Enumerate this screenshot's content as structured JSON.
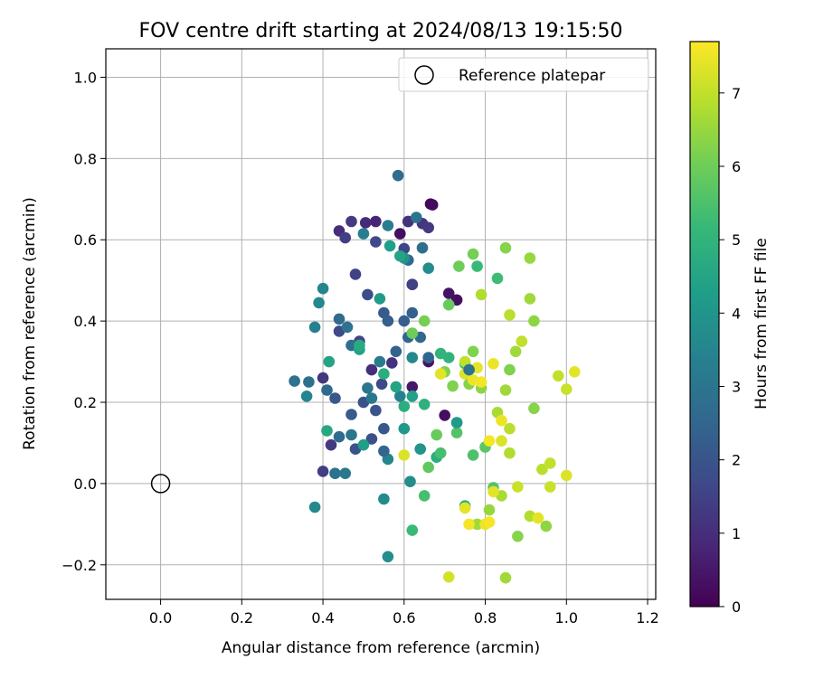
{
  "chart_data": {
    "type": "scatter",
    "title": "FOV centre drift starting at 2024/08/13 19:15:50",
    "xlabel": "Angular distance from reference (arcmin)",
    "ylabel": "Rotation from reference (arcmin)",
    "xlim": [
      -0.135,
      1.22
    ],
    "ylim": [
      -0.285,
      1.07
    ],
    "xticks": [
      0.0,
      0.2,
      0.4,
      0.6,
      0.8,
      1.0,
      1.2
    ],
    "xtick_labels": [
      "0.0",
      "0.2",
      "0.4",
      "0.6",
      "0.8",
      "1.0",
      "1.2"
    ],
    "yticks": [
      -0.2,
      0.0,
      0.2,
      0.4,
      0.6,
      0.8,
      1.0
    ],
    "ytick_labels": [
      "−0.2",
      "0.0",
      "0.2",
      "0.4",
      "0.6",
      "0.8",
      "1.0"
    ],
    "grid": true,
    "legend": {
      "position": "top-right",
      "entries": [
        "Reference platepar"
      ]
    },
    "reference_point": {
      "x": 0.0,
      "y": 0.0
    },
    "colorbar": {
      "label": "Hours from first FF file",
      "min": 0,
      "max": 7.7,
      "ticks": [
        0,
        1,
        2,
        3,
        4,
        5,
        6,
        7
      ],
      "tick_labels": [
        "0",
        "1",
        "2",
        "3",
        "4",
        "5",
        "6",
        "7"
      ],
      "colormap": "viridis"
    },
    "points": [
      [
        0.665,
        0.688,
        0.1
      ],
      [
        0.67,
        0.686,
        0.2
      ],
      [
        0.59,
        0.615,
        0.3
      ],
      [
        0.71,
        0.468,
        0.4
      ],
      [
        0.73,
        0.452,
        0.3
      ],
      [
        0.7,
        0.168,
        0.3
      ],
      [
        0.66,
        0.3,
        0.4
      ],
      [
        0.62,
        0.238,
        0.5
      ],
      [
        0.61,
        0.645,
        0.7
      ],
      [
        0.53,
        0.645,
        0.8
      ],
      [
        0.505,
        0.642,
        0.9
      ],
      [
        0.44,
        0.622,
        1.0
      ],
      [
        0.62,
        0.49,
        0.9
      ],
      [
        0.52,
        0.28,
        1.0
      ],
      [
        0.57,
        0.297,
        1.1
      ],
      [
        0.61,
        0.645,
        1.1
      ],
      [
        0.47,
        0.645,
        1.3
      ],
      [
        0.645,
        0.64,
        1.2
      ],
      [
        0.66,
        0.63,
        1.3
      ],
      [
        0.455,
        0.605,
        1.4
      ],
      [
        0.4,
        0.26,
        1.2
      ],
      [
        0.42,
        0.095,
        1.3
      ],
      [
        0.4,
        0.03,
        1.4
      ],
      [
        0.48,
        0.515,
        1.5
      ],
      [
        0.6,
        0.578,
        1.6
      ],
      [
        0.53,
        0.595,
        1.7
      ],
      [
        0.62,
        0.49,
        1.5
      ],
      [
        0.51,
        0.465,
        1.8
      ],
      [
        0.44,
        0.375,
        1.7
      ],
      [
        0.49,
        0.35,
        1.6
      ],
      [
        0.545,
        0.245,
        1.7
      ],
      [
        0.5,
        0.2,
        1.9
      ],
      [
        0.53,
        0.18,
        2.0
      ],
      [
        0.52,
        0.11,
        1.9
      ],
      [
        0.55,
        0.135,
        2.1
      ],
      [
        0.48,
        0.085,
        2.0
      ],
      [
        0.43,
        0.21,
        2.1
      ],
      [
        0.47,
        0.17,
        2.2
      ],
      [
        0.55,
        0.42,
        2.2
      ],
      [
        0.56,
        0.4,
        2.3
      ],
      [
        0.6,
        0.4,
        2.3
      ],
      [
        0.58,
        0.325,
        2.4
      ],
      [
        0.61,
        0.36,
        2.5
      ],
      [
        0.62,
        0.42,
        2.4
      ],
      [
        0.64,
        0.36,
        2.6
      ],
      [
        0.66,
        0.31,
        2.5
      ],
      [
        0.61,
        0.55,
        2.6
      ],
      [
        0.645,
        0.58,
        2.8
      ],
      [
        0.585,
        0.758,
        2.7
      ],
      [
        0.63,
        0.655,
        2.9
      ],
      [
        0.44,
        0.405,
        2.7
      ],
      [
        0.46,
        0.385,
        2.9
      ],
      [
        0.47,
        0.34,
        2.8
      ],
      [
        0.41,
        0.23,
        2.6
      ],
      [
        0.365,
        0.25,
        2.8
      ],
      [
        0.33,
        0.252,
        2.9
      ],
      [
        0.44,
        0.115,
        2.7
      ],
      [
        0.47,
        0.12,
        3.0
      ],
      [
        0.43,
        0.025,
        2.9
      ],
      [
        0.455,
        0.025,
        3.1
      ],
      [
        0.51,
        0.235,
        3.0
      ],
      [
        0.52,
        0.21,
        3.1
      ],
      [
        0.54,
        0.3,
        3.2
      ],
      [
        0.5,
        0.615,
        3.3
      ],
      [
        0.56,
        0.635,
        3.3
      ],
      [
        0.38,
        0.385,
        3.4
      ],
      [
        0.4,
        0.48,
        3.5
      ],
      [
        0.39,
        0.445,
        3.6
      ],
      [
        0.36,
        0.215,
        3.5
      ],
      [
        0.38,
        -0.058,
        3.6
      ],
      [
        0.59,
        0.215,
        3.4
      ],
      [
        0.56,
        0.06,
        3.5
      ],
      [
        0.55,
        -0.038,
        3.7
      ],
      [
        0.56,
        -0.18,
        3.8
      ],
      [
        0.615,
        0.005,
        3.8
      ],
      [
        0.62,
        0.31,
        3.6
      ],
      [
        0.66,
        0.53,
        3.8
      ],
      [
        0.6,
        0.555,
        3.9
      ],
      [
        0.64,
        0.085,
        4.0
      ],
      [
        0.6,
        0.135,
        4.1
      ],
      [
        0.54,
        0.455,
        4.2
      ],
      [
        0.565,
        0.585,
        4.3
      ],
      [
        0.62,
        0.215,
        4.4
      ],
      [
        0.58,
        0.238,
        4.5
      ],
      [
        0.5,
        0.095,
        4.3
      ],
      [
        0.49,
        0.33,
        4.4
      ],
      [
        0.41,
        0.13,
        4.6
      ],
      [
        0.415,
        0.3,
        4.5
      ],
      [
        0.49,
        0.34,
        4.7
      ],
      [
        0.55,
        0.27,
        4.8
      ],
      [
        0.6,
        0.19,
        4.8
      ],
      [
        0.65,
        0.195,
        4.9
      ],
      [
        0.68,
        0.065,
        4.8
      ],
      [
        0.73,
        0.15,
        4.7
      ],
      [
        0.75,
        -0.055,
        4.9
      ],
      [
        0.69,
        0.32,
        5.0
      ],
      [
        0.71,
        0.31,
        5.0
      ],
      [
        0.75,
        0.295,
        5.1
      ],
      [
        0.78,
        0.535,
        5.2
      ],
      [
        0.83,
        0.505,
        5.3
      ],
      [
        0.62,
        -0.115,
        5.2
      ],
      [
        0.65,
        -0.03,
        5.4
      ],
      [
        0.69,
        0.075,
        5.4
      ],
      [
        0.73,
        0.125,
        5.6
      ],
      [
        0.77,
        0.07,
        5.5
      ],
      [
        0.8,
        0.09,
        5.7
      ],
      [
        0.82,
        -0.01,
        5.6
      ],
      [
        0.66,
        0.04,
        5.8
      ],
      [
        0.68,
        0.12,
        5.9
      ],
      [
        0.71,
        0.44,
        5.9
      ],
      [
        0.735,
        0.535,
        6.0
      ],
      [
        0.77,
        0.565,
        6.1
      ],
      [
        0.62,
        0.37,
        6.0
      ],
      [
        0.65,
        0.4,
        6.1
      ],
      [
        0.7,
        0.275,
        6.2
      ],
      [
        0.72,
        0.24,
        6.2
      ],
      [
        0.76,
        0.245,
        6.3
      ],
      [
        0.77,
        0.325,
        6.2
      ],
      [
        0.79,
        0.235,
        6.4
      ],
      [
        0.85,
        0.58,
        6.3
      ],
      [
        0.86,
        0.28,
        6.2
      ],
      [
        0.91,
        0.555,
        6.5
      ],
      [
        0.92,
        0.4,
        6.4
      ],
      [
        0.91,
        0.455,
        6.6
      ],
      [
        0.875,
        0.325,
        6.6
      ],
      [
        0.92,
        0.185,
        6.3
      ],
      [
        0.95,
        -0.105,
        6.4
      ],
      [
        0.78,
        -0.1,
        6.6
      ],
      [
        0.81,
        -0.065,
        6.5
      ],
      [
        0.84,
        -0.03,
        6.7
      ],
      [
        0.88,
        -0.13,
        6.3
      ],
      [
        0.91,
        -0.08,
        6.8
      ],
      [
        0.86,
        0.075,
        6.8
      ],
      [
        0.83,
        0.175,
        6.7
      ],
      [
        0.86,
        0.135,
        6.9
      ],
      [
        0.79,
        0.465,
        6.8
      ],
      [
        0.86,
        0.415,
        6.9
      ],
      [
        0.89,
        0.35,
        7.0
      ],
      [
        0.85,
        0.23,
        6.6
      ],
      [
        0.94,
        0.035,
        6.9
      ],
      [
        0.96,
        0.05,
        7.0
      ],
      [
        0.96,
        -0.008,
        7.1
      ],
      [
        0.98,
        0.265,
        7.0
      ],
      [
        1.0,
        0.232,
        7.1
      ],
      [
        1.0,
        0.02,
        7.3
      ],
      [
        0.93,
        -0.085,
        7.4
      ],
      [
        0.88,
        -0.008,
        7.1
      ],
      [
        0.75,
        0.27,
        7.3
      ],
      [
        0.77,
        0.255,
        7.5
      ],
      [
        0.79,
        0.25,
        7.6
      ],
      [
        0.78,
        0.285,
        7.4
      ],
      [
        0.82,
        0.295,
        7.5
      ],
      [
        0.84,
        0.105,
        7.3
      ],
      [
        0.84,
        0.155,
        7.5
      ],
      [
        0.81,
        0.105,
        7.6
      ],
      [
        0.82,
        -0.02,
        7.4
      ],
      [
        0.8,
        -0.1,
        7.5
      ],
      [
        0.81,
        -0.095,
        7.6
      ],
      [
        0.75,
        -0.06,
        7.4
      ],
      [
        0.76,
        -0.1,
        7.6
      ],
      [
        0.69,
        0.27,
        7.4
      ],
      [
        0.71,
        -0.23,
        7.2
      ],
      [
        0.85,
        -0.232,
        6.6
      ],
      [
        0.6,
        0.07,
        7.3
      ],
      [
        1.02,
        0.275,
        7.4
      ],
      [
        0.75,
        0.3,
        7.0
      ],
      [
        0.73,
        0.15,
        4.2
      ],
      [
        0.76,
        0.28,
        2.9
      ],
      [
        0.59,
        0.56,
        4.5
      ],
      [
        0.55,
        0.08,
        2.5
      ]
    ]
  }
}
